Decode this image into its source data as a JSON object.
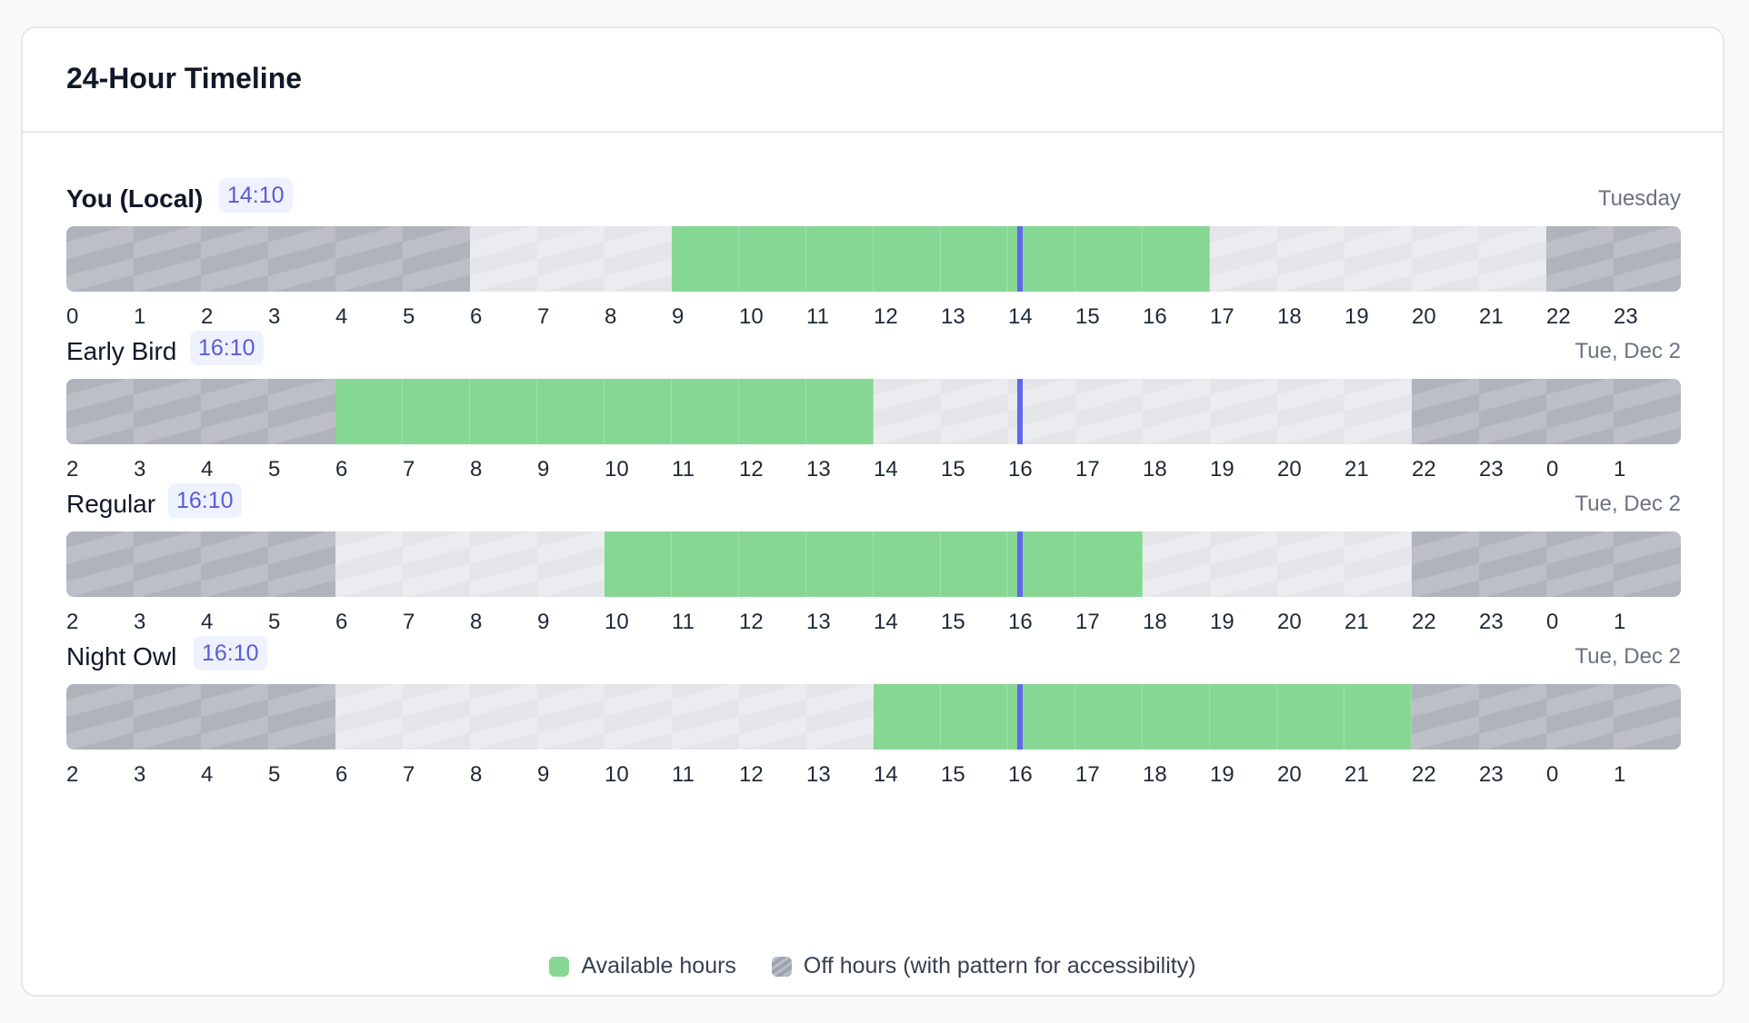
{
  "card": {
    "title": "24-Hour Timeline"
  },
  "rows": [
    {
      "name": "You (Local)",
      "time": "14:10",
      "date": "Tuesday",
      "bold": true,
      "start_hour": 0,
      "now_offset_hours": 14.17,
      "hours": [
        "0",
        "1",
        "2",
        "3",
        "4",
        "5",
        "6",
        "7",
        "8",
        "9",
        "10",
        "11",
        "12",
        "13",
        "14",
        "15",
        "16",
        "17",
        "18",
        "19",
        "20",
        "21",
        "22",
        "23"
      ],
      "states": [
        "off",
        "off",
        "off",
        "off",
        "off",
        "off",
        "mid",
        "mid",
        "mid",
        "avail",
        "avail",
        "avail",
        "avail",
        "avail",
        "avail",
        "avail",
        "avail",
        "mid",
        "mid",
        "mid",
        "mid",
        "mid",
        "off",
        "off"
      ]
    },
    {
      "name": "Early Bird",
      "time": "16:10",
      "date": "Tue, Dec 2",
      "bold": false,
      "start_hour": 2,
      "now_offset_hours": 14.17,
      "hours": [
        "2",
        "3",
        "4",
        "5",
        "6",
        "7",
        "8",
        "9",
        "10",
        "11",
        "12",
        "13",
        "14",
        "15",
        "16",
        "17",
        "18",
        "19",
        "20",
        "21",
        "22",
        "23",
        "0",
        "1"
      ],
      "states": [
        "off",
        "off",
        "off",
        "off",
        "avail",
        "avail",
        "avail",
        "avail",
        "avail",
        "avail",
        "avail",
        "avail",
        "mid",
        "mid",
        "mid",
        "mid",
        "mid",
        "mid",
        "mid",
        "mid",
        "off",
        "off",
        "off",
        "off"
      ]
    },
    {
      "name": "Regular",
      "time": "16:10",
      "date": "Tue, Dec 2",
      "bold": false,
      "start_hour": 2,
      "now_offset_hours": 14.17,
      "hours": [
        "2",
        "3",
        "4",
        "5",
        "6",
        "7",
        "8",
        "9",
        "10",
        "11",
        "12",
        "13",
        "14",
        "15",
        "16",
        "17",
        "18",
        "19",
        "20",
        "21",
        "22",
        "23",
        "0",
        "1"
      ],
      "states": [
        "off",
        "off",
        "off",
        "off",
        "mid",
        "mid",
        "mid",
        "mid",
        "avail",
        "avail",
        "avail",
        "avail",
        "avail",
        "avail",
        "avail",
        "avail",
        "mid",
        "mid",
        "mid",
        "mid",
        "off",
        "off",
        "off",
        "off"
      ]
    },
    {
      "name": "Night Owl",
      "time": "16:10",
      "date": "Tue, Dec 2",
      "bold": false,
      "start_hour": 2,
      "now_offset_hours": 14.17,
      "hours": [
        "2",
        "3",
        "4",
        "5",
        "6",
        "7",
        "8",
        "9",
        "10",
        "11",
        "12",
        "13",
        "14",
        "15",
        "16",
        "17",
        "18",
        "19",
        "20",
        "21",
        "22",
        "23",
        "0",
        "1"
      ],
      "states": [
        "off",
        "off",
        "off",
        "off",
        "mid",
        "mid",
        "mid",
        "mid",
        "mid",
        "mid",
        "mid",
        "mid",
        "avail",
        "avail",
        "avail",
        "avail",
        "avail",
        "avail",
        "avail",
        "avail",
        "off",
        "off",
        "off",
        "off"
      ]
    }
  ],
  "legend": {
    "available_label": "Available hours",
    "off_label": "Off hours (with pattern for accessibility)"
  },
  "colors": {
    "available": "#86d793",
    "off": "#afb3bc",
    "other": "#e3e5e9",
    "current_time": "#6366f1",
    "time_badge_bg": "#eef2ff",
    "time_badge_text": "#5b5bd6"
  }
}
